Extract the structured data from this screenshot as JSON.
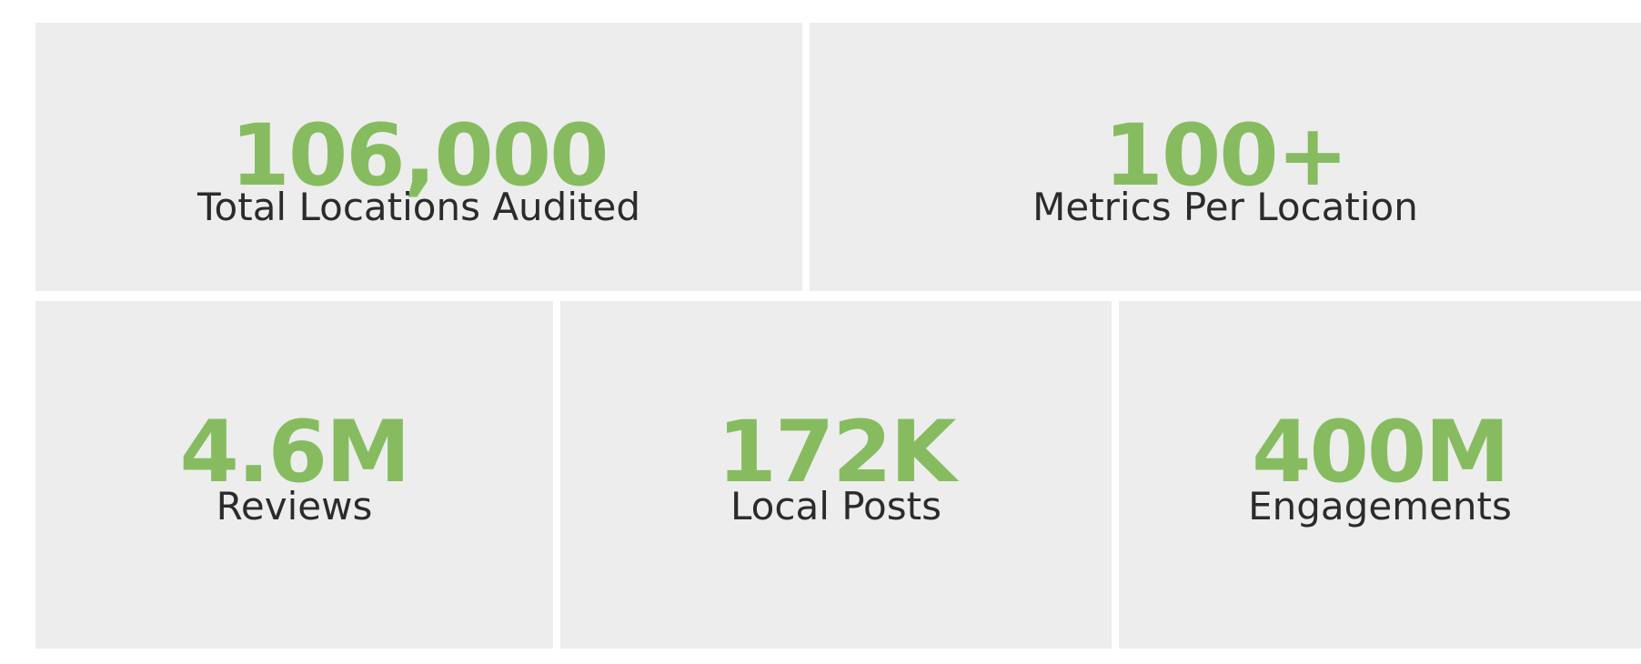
{
  "colors": {
    "accent": "#86bc5f",
    "tile_background": "#ededed",
    "label_text": "#2b2b2b",
    "page_background": "#ffffff"
  },
  "stats": {
    "locations": {
      "value": "106,000",
      "label": "Total Locations Audited"
    },
    "metrics": {
      "value": "100+",
      "label": "Metrics Per Location"
    },
    "reviews": {
      "value": "4.6M",
      "label": "Reviews"
    },
    "posts": {
      "value": "172K",
      "label": "Local Posts"
    },
    "engagements": {
      "value": "400M",
      "label": "Engagements"
    }
  }
}
